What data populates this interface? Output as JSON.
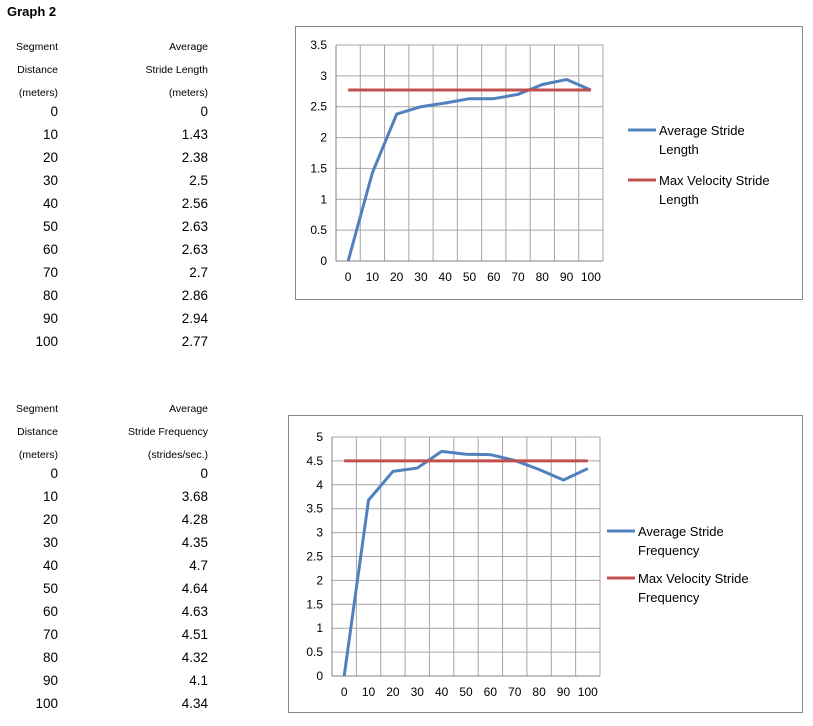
{
  "page_title": "Graph 2",
  "table1": {
    "col1_header": [
      "Segment",
      "Distance",
      "(meters)"
    ],
    "col2_header": [
      "Average",
      "Stride Length",
      "(meters)"
    ],
    "distances": [
      "0",
      "10",
      "20",
      "30",
      "40",
      "50",
      "60",
      "70",
      "80",
      "90",
      "100"
    ],
    "values": [
      "0",
      "1.43",
      "2.38",
      "2.5",
      "2.56",
      "2.63",
      "2.63",
      "2.7",
      "2.86",
      "2.94",
      "2.77"
    ]
  },
  "table2": {
    "col1_header": [
      "Segment",
      "Distance",
      "(meters)"
    ],
    "col2_header": [
      "Average",
      "Stride Frequency",
      "(strides/sec.)"
    ],
    "distances": [
      "0",
      "10",
      "20",
      "30",
      "40",
      "50",
      "60",
      "70",
      "80",
      "90",
      "100"
    ],
    "values": [
      "0",
      "3.68",
      "4.28",
      "4.35",
      "4.7",
      "4.64",
      "4.63",
      "4.51",
      "4.32",
      "4.1",
      "4.34"
    ]
  },
  "colors": {
    "series_blue": "#4f81bd",
    "series_red": "#c0504d",
    "grid": "#a6a6a6"
  },
  "chart_data": [
    {
      "type": "line",
      "x": [
        0,
        10,
        20,
        30,
        40,
        50,
        60,
        70,
        80,
        90,
        100
      ],
      "ylim": [
        0,
        3.5
      ],
      "yticks": [
        "0",
        "0.5",
        "1",
        "1.5",
        "2",
        "2.5",
        "3",
        "3.5"
      ],
      "xticks": [
        "0",
        "10",
        "20",
        "30",
        "40",
        "50",
        "60",
        "70",
        "80",
        "90",
        "100"
      ],
      "grid": true,
      "legend_position": "right",
      "series": [
        {
          "name": "Average Stride Length",
          "legend_lines": [
            "Average Stride",
            "Length"
          ],
          "values": [
            0,
            1.43,
            2.38,
            2.5,
            2.56,
            2.63,
            2.63,
            2.7,
            2.86,
            2.94,
            2.77
          ]
        },
        {
          "name": "Max Velocity Stride Length",
          "legend_lines": [
            "Max Velocity Stride",
            "Length"
          ],
          "values": [
            2.77,
            2.77,
            2.77,
            2.77,
            2.77,
            2.77,
            2.77,
            2.77,
            2.77,
            2.77,
            2.77
          ]
        }
      ]
    },
    {
      "type": "line",
      "x": [
        0,
        10,
        20,
        30,
        40,
        50,
        60,
        70,
        80,
        90,
        100
      ],
      "ylim": [
        0,
        5
      ],
      "yticks": [
        "0",
        "0.5",
        "1",
        "1.5",
        "2",
        "2.5",
        "3",
        "3.5",
        "4",
        "4.5",
        "5"
      ],
      "xticks": [
        "0",
        "10",
        "20",
        "30",
        "40",
        "50",
        "60",
        "70",
        "80",
        "90",
        "100"
      ],
      "grid": true,
      "legend_position": "right",
      "series": [
        {
          "name": "Average Stride Frequency",
          "legend_lines": [
            "Average Stride",
            "Frequency"
          ],
          "values": [
            0,
            3.68,
            4.28,
            4.35,
            4.7,
            4.64,
            4.63,
            4.51,
            4.32,
            4.1,
            4.34
          ]
        },
        {
          "name": "Max Velocity Stride Frequency",
          "legend_lines": [
            "Max Velocity Stride",
            "Frequency"
          ],
          "values": [
            4.5,
            4.5,
            4.5,
            4.5,
            4.5,
            4.5,
            4.5,
            4.5,
            4.5,
            4.5,
            4.5
          ]
        }
      ]
    }
  ]
}
